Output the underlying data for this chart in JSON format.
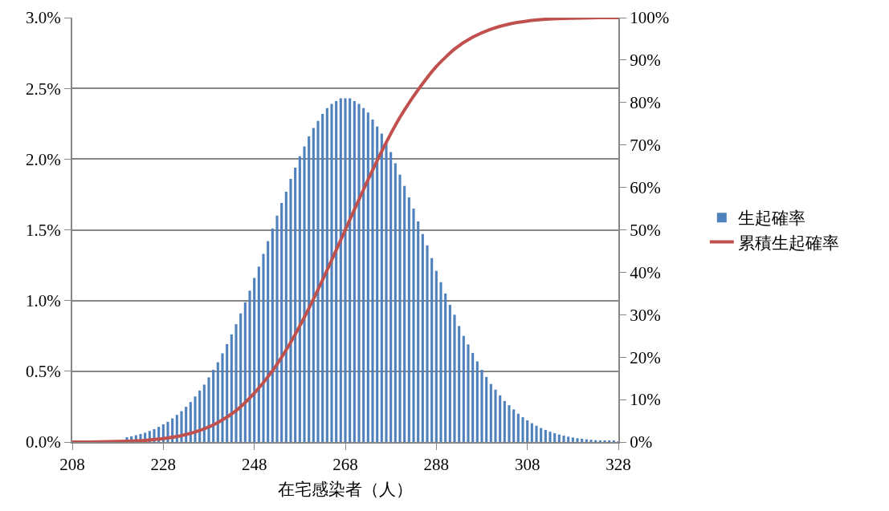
{
  "chart_data": {
    "type": "bar",
    "xlabel": "在宅感染者（人）",
    "x": [
      220,
      221,
      222,
      223,
      224,
      225,
      226,
      227,
      228,
      229,
      230,
      231,
      232,
      233,
      234,
      235,
      236,
      237,
      238,
      239,
      240,
      241,
      242,
      243,
      244,
      245,
      246,
      247,
      248,
      249,
      250,
      251,
      252,
      253,
      254,
      255,
      256,
      257,
      258,
      259,
      260,
      261,
      262,
      263,
      264,
      265,
      266,
      267,
      268,
      269,
      270,
      271,
      272,
      273,
      274,
      275,
      276,
      277,
      278,
      279,
      280,
      281,
      282,
      283,
      284,
      285,
      286,
      287,
      288,
      289,
      290,
      291,
      292,
      293,
      294,
      295,
      296,
      297,
      298,
      299,
      300,
      301,
      302,
      303,
      304,
      305,
      306,
      307,
      308,
      309,
      310,
      311,
      312,
      313,
      314,
      315,
      316,
      317,
      318,
      319,
      320,
      321,
      322,
      323,
      324,
      325,
      326,
      327,
      328
    ],
    "series": [
      {
        "name": "生起確率",
        "color": "#4f81bd",
        "values": [
          0.034,
          0.04,
          0.048,
          0.057,
          0.066,
          0.078,
          0.091,
          0.107,
          0.125,
          0.143,
          0.167,
          0.192,
          0.218,
          0.249,
          0.283,
          0.322,
          0.364,
          0.406,
          0.457,
          0.511,
          0.564,
          0.627,
          0.692,
          0.761,
          0.833,
          0.909,
          0.988,
          1.07,
          1.16,
          1.24,
          1.33,
          1.42,
          1.51,
          1.6,
          1.69,
          1.77,
          1.86,
          1.94,
          2.02,
          2.09,
          2.16,
          2.22,
          2.27,
          2.32,
          2.36,
          2.39,
          2.41,
          2.43,
          2.43,
          2.43,
          2.41,
          2.39,
          2.36,
          2.33,
          2.28,
          2.23,
          2.18,
          2.11,
          2.05,
          1.97,
          1.89,
          1.81,
          1.73,
          1.65,
          1.56,
          1.47,
          1.39,
          1.3,
          1.21,
          1.13,
          1.05,
          0.97,
          0.9,
          0.82,
          0.75,
          0.69,
          0.63,
          0.57,
          0.51,
          0.46,
          0.41,
          0.37,
          0.33,
          0.29,
          0.26,
          0.23,
          0.2,
          0.175,
          0.153,
          0.133,
          0.115,
          0.099,
          0.085,
          0.073,
          0.062,
          0.053,
          0.045,
          0.038,
          0.032,
          0.027,
          0.023,
          0.019,
          0.016,
          0.013,
          0.011,
          0.009,
          0.007,
          0.006,
          0.005
        ]
      },
      {
        "name": "累積生起確率",
        "type": "line",
        "axis": "y2",
        "color": "#c0504d",
        "x": [
          208,
          212,
          216,
          220,
          224,
          228,
          232,
          236,
          240,
          244,
          248,
          252,
          256,
          260,
          264,
          268,
          272,
          276,
          280,
          284,
          288,
          292,
          296,
          300,
          304,
          308,
          312,
          316,
          320,
          324,
          328
        ],
        "values": [
          0,
          0,
          0.1,
          0.2,
          0.4,
          0.8,
          1.5,
          2.7,
          4.6,
          7.4,
          11.5,
          16.8,
          23.5,
          31.5,
          40.5,
          50,
          59.5,
          68.5,
          76.5,
          83,
          88.5,
          92.6,
          95.4,
          97.3,
          98.5,
          99.2,
          99.6,
          99.8,
          99.9,
          100,
          100
        ]
      }
    ],
    "xlim": [
      208,
      328
    ],
    "xticks": [
      208,
      228,
      248,
      268,
      288,
      308,
      328
    ],
    "ylim": [
      0,
      3
    ],
    "yticks": [
      {
        "value": 0,
        "label": "0.0%"
      },
      {
        "value": 0.5,
        "label": "0.5%"
      },
      {
        "value": 1,
        "label": "1.0%"
      },
      {
        "value": 1.5,
        "label": "1.5%"
      },
      {
        "value": 2,
        "label": "2.0%"
      },
      {
        "value": 2.5,
        "label": "2.5%"
      },
      {
        "value": 3,
        "label": "3.0%"
      }
    ],
    "y2lim": [
      0,
      100
    ],
    "y2ticks": [
      {
        "value": 0,
        "label": "0%"
      },
      {
        "value": 10,
        "label": "10%"
      },
      {
        "value": 20,
        "label": "20%"
      },
      {
        "value": 30,
        "label": "30%"
      },
      {
        "value": 40,
        "label": "40%"
      },
      {
        "value": 50,
        "label": "50%"
      },
      {
        "value": 60,
        "label": "60%"
      },
      {
        "value": 70,
        "label": "70%"
      },
      {
        "value": 80,
        "label": "80%"
      },
      {
        "value": 90,
        "label": "90%"
      },
      {
        "value": 100,
        "label": "100%"
      }
    ],
    "grid": "y",
    "legend": "right",
    "marker": "none",
    "line_style": "solid"
  }
}
